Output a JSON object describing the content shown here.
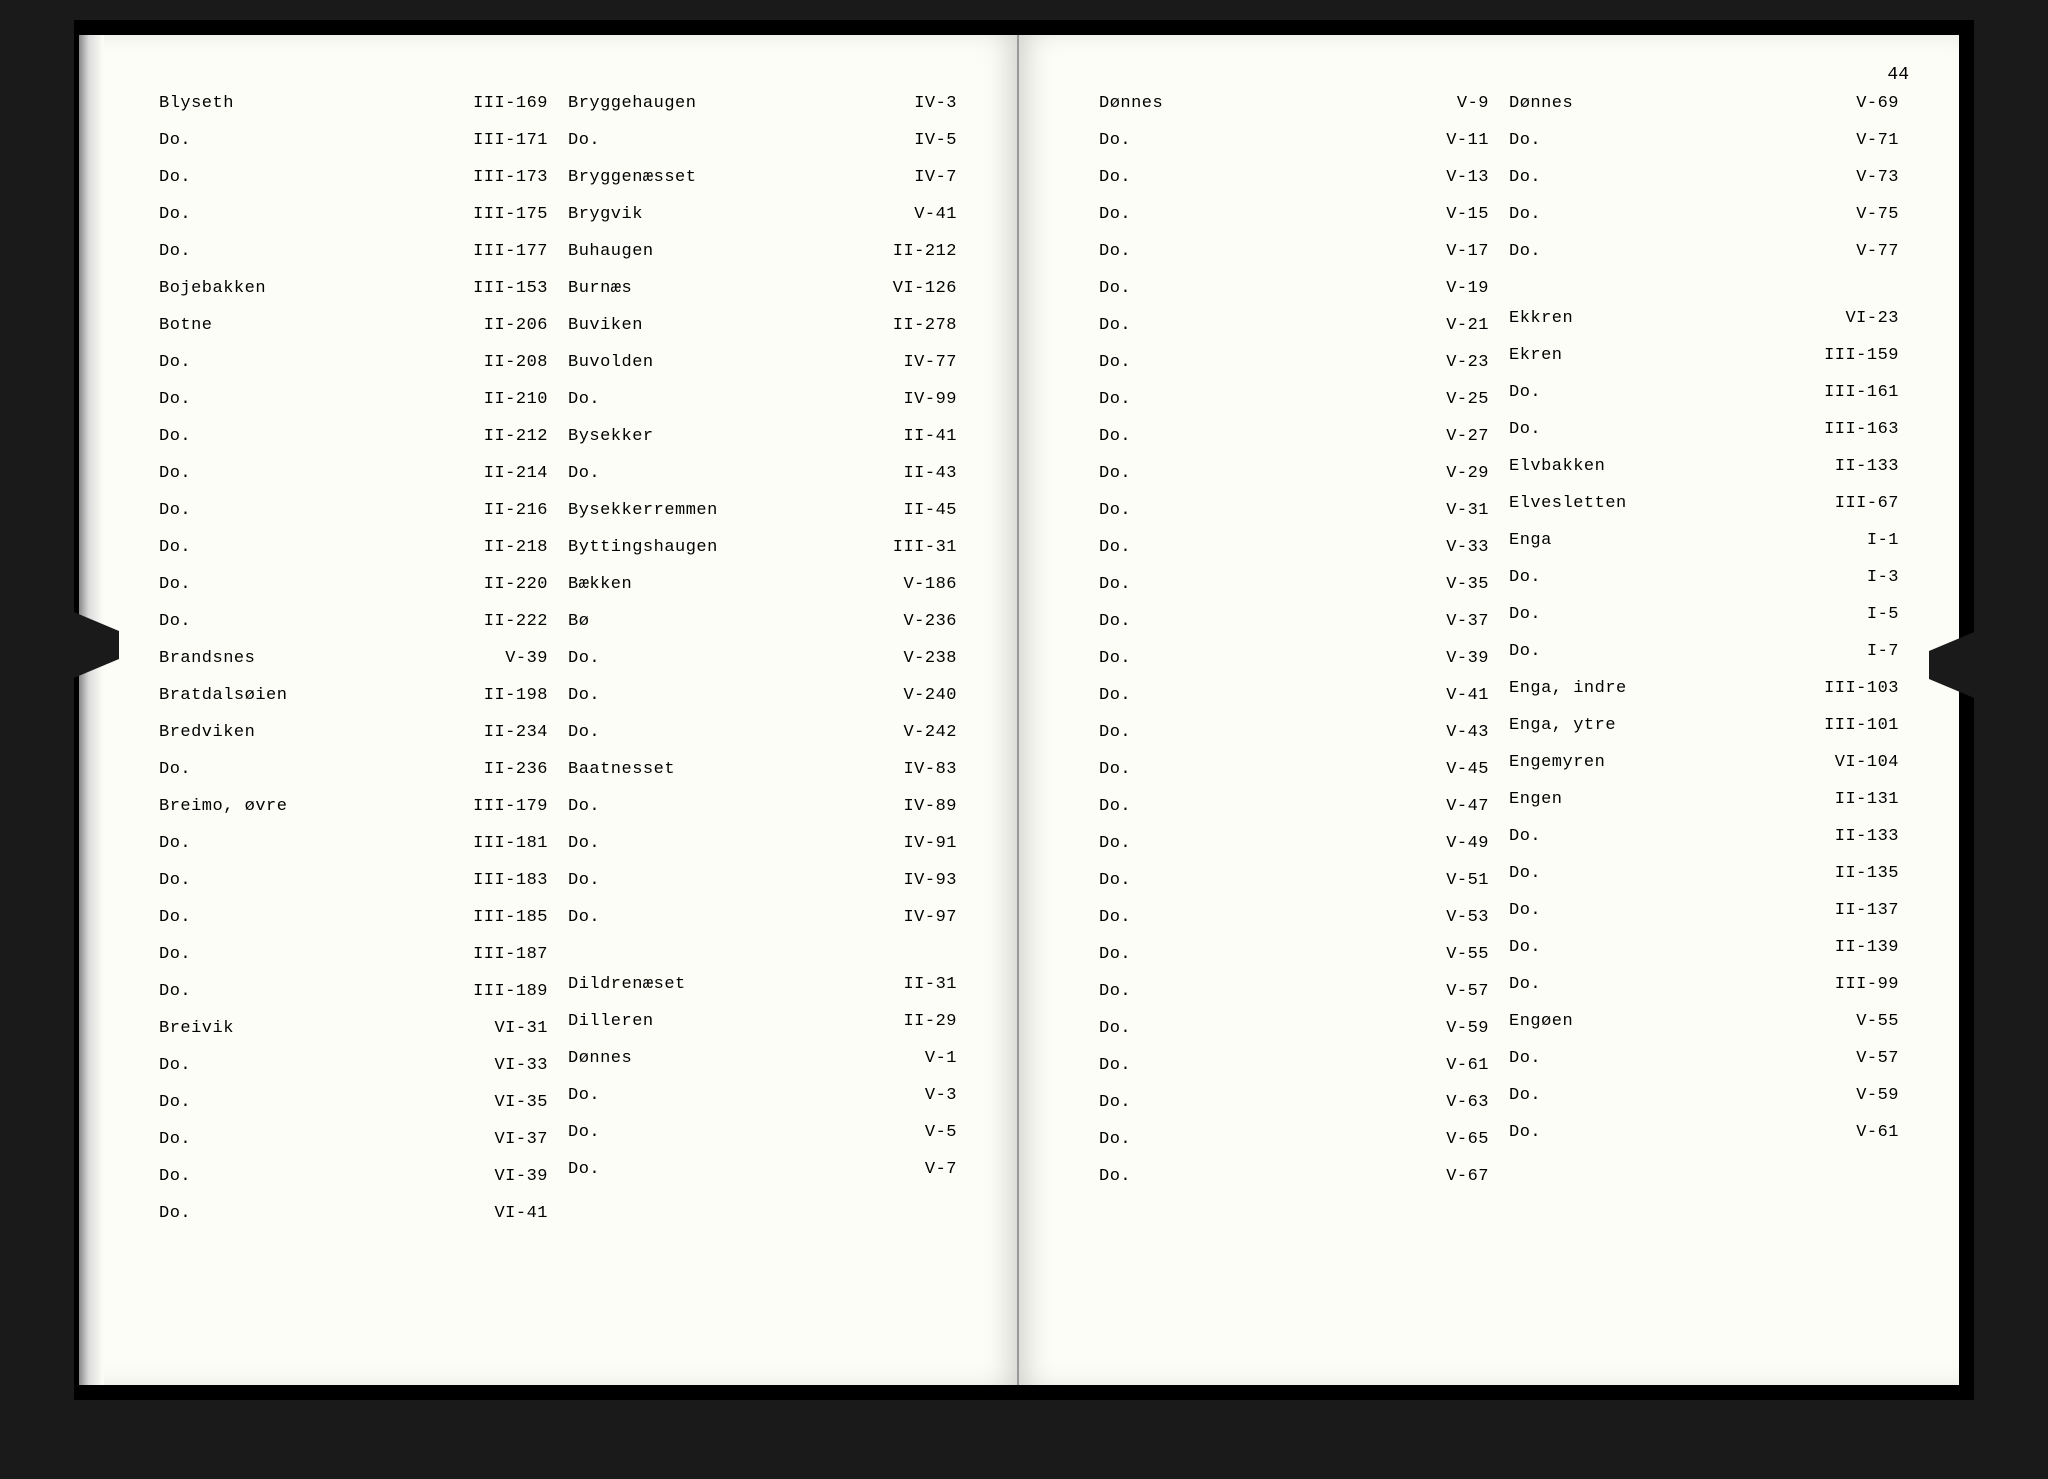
{
  "page_number": "44",
  "left_page": {
    "col1": [
      {
        "name": "Blyseth",
        "ref": "III-169"
      },
      {
        "name": "Do.",
        "ref": "III-171"
      },
      {
        "name": "Do.",
        "ref": "III-173"
      },
      {
        "name": "Do.",
        "ref": "III-175"
      },
      {
        "name": "Do.",
        "ref": "III-177"
      },
      {
        "name": "Bojebakken",
        "ref": "III-153"
      },
      {
        "name": "Botne",
        "ref": "II-206"
      },
      {
        "name": "Do.",
        "ref": "II-208"
      },
      {
        "name": "Do.",
        "ref": "II-210"
      },
      {
        "name": "Do.",
        "ref": "II-212"
      },
      {
        "name": "Do.",
        "ref": "II-214"
      },
      {
        "name": "Do.",
        "ref": "II-216"
      },
      {
        "name": "Do.",
        "ref": "II-218"
      },
      {
        "name": "Do.",
        "ref": "II-220"
      },
      {
        "name": "Do.",
        "ref": "II-222"
      },
      {
        "name": "Brandsnes",
        "ref": "V-39"
      },
      {
        "name": "Bratdalsøien",
        "ref": "II-198"
      },
      {
        "name": "Bredviken",
        "ref": "II-234"
      },
      {
        "name": "Do.",
        "ref": "II-236"
      },
      {
        "name": "Breimo, øvre",
        "ref": "III-179"
      },
      {
        "name": "Do.",
        "ref": "III-181"
      },
      {
        "name": "Do.",
        "ref": "III-183"
      },
      {
        "name": "Do.",
        "ref": "III-185"
      },
      {
        "name": "Do.",
        "ref": "III-187"
      },
      {
        "name": "Do.",
        "ref": "III-189"
      },
      {
        "name": "Breivik",
        "ref": "VI-31"
      },
      {
        "name": "Do.",
        "ref": "VI-33"
      },
      {
        "name": "Do.",
        "ref": "VI-35"
      },
      {
        "name": "Do.",
        "ref": "VI-37"
      },
      {
        "name": "Do.",
        "ref": "VI-39"
      },
      {
        "name": "Do.",
        "ref": "VI-41"
      }
    ],
    "col2": [
      {
        "name": "Bryggehaugen",
        "ref": "IV-3"
      },
      {
        "name": "Do.",
        "ref": "IV-5"
      },
      {
        "name": "Bryggenæsset",
        "ref": "IV-7"
      },
      {
        "name": "Brygvik",
        "ref": "V-41"
      },
      {
        "name": "Buhaugen",
        "ref": "II-212"
      },
      {
        "name": "Burnæs",
        "ref": "VI-126"
      },
      {
        "name": "Buviken",
        "ref": "II-278"
      },
      {
        "name": "Buvolden",
        "ref": "IV-77"
      },
      {
        "name": "Do.",
        "ref": "IV-99"
      },
      {
        "name": "Bysekker",
        "ref": "II-41"
      },
      {
        "name": "Do.",
        "ref": "II-43"
      },
      {
        "name": "Bysekkerremmen",
        "ref": "II-45"
      },
      {
        "name": "Byttingshaugen",
        "ref": "III-31"
      },
      {
        "name": "Bækken",
        "ref": "V-186"
      },
      {
        "name": "Bø",
        "ref": "V-236"
      },
      {
        "name": "Do.",
        "ref": "V-238"
      },
      {
        "name": "Do.",
        "ref": "V-240"
      },
      {
        "name": "Do.",
        "ref": "V-242"
      },
      {
        "name": "Baatnesset",
        "ref": "IV-83"
      },
      {
        "name": "Do.",
        "ref": "IV-89"
      },
      {
        "name": "Do.",
        "ref": "IV-91"
      },
      {
        "name": "Do.",
        "ref": "IV-93"
      },
      {
        "name": "Do.",
        "ref": "IV-97"
      },
      {
        "name": "Dildrenæset",
        "ref": "II-31",
        "gap": true
      },
      {
        "name": "Dilleren",
        "ref": "II-29"
      },
      {
        "name": "Dønnes",
        "ref": "V-1"
      },
      {
        "name": "Do.",
        "ref": "V-3"
      },
      {
        "name": "Do.",
        "ref": "V-5"
      },
      {
        "name": "Do.",
        "ref": "V-7"
      }
    ]
  },
  "right_page": {
    "col1": [
      {
        "name": "Dønnes",
        "ref": "V-9"
      },
      {
        "name": "Do.",
        "ref": "V-11"
      },
      {
        "name": "Do.",
        "ref": "V-13"
      },
      {
        "name": "Do.",
        "ref": "V-15"
      },
      {
        "name": "Do.",
        "ref": "V-17"
      },
      {
        "name": "Do.",
        "ref": "V-19"
      },
      {
        "name": "Do.",
        "ref": "V-21"
      },
      {
        "name": "Do.",
        "ref": "V-23"
      },
      {
        "name": "Do.",
        "ref": "V-25"
      },
      {
        "name": "Do.",
        "ref": "V-27"
      },
      {
        "name": "Do.",
        "ref": "V-29"
      },
      {
        "name": "Do.",
        "ref": "V-31"
      },
      {
        "name": "Do.",
        "ref": "V-33"
      },
      {
        "name": "Do.",
        "ref": "V-35"
      },
      {
        "name": "Do.",
        "ref": "V-37"
      },
      {
        "name": "Do.",
        "ref": "V-39"
      },
      {
        "name": "Do.",
        "ref": "V-41"
      },
      {
        "name": "Do.",
        "ref": "V-43"
      },
      {
        "name": "Do.",
        "ref": "V-45"
      },
      {
        "name": "Do.",
        "ref": "V-47"
      },
      {
        "name": "Do.",
        "ref": "V-49"
      },
      {
        "name": "Do.",
        "ref": "V-51"
      },
      {
        "name": "Do.",
        "ref": "V-53"
      },
      {
        "name": "Do.",
        "ref": "V-55"
      },
      {
        "name": "Do.",
        "ref": "V-57"
      },
      {
        "name": "Do.",
        "ref": "V-59"
      },
      {
        "name": "Do.",
        "ref": "V-61"
      },
      {
        "name": "Do.",
        "ref": "V-63"
      },
      {
        "name": "Do.",
        "ref": "V-65"
      },
      {
        "name": "Do.",
        "ref": "V-67"
      }
    ],
    "col2": [
      {
        "name": "Dønnes",
        "ref": "V-69"
      },
      {
        "name": "Do.",
        "ref": "V-71"
      },
      {
        "name": "Do.",
        "ref": "V-73"
      },
      {
        "name": "Do.",
        "ref": "V-75"
      },
      {
        "name": "Do.",
        "ref": "V-77"
      },
      {
        "name": "Ekkren",
        "ref": "VI-23",
        "gap": true
      },
      {
        "name": "Ekren",
        "ref": "III-159"
      },
      {
        "name": "Do.",
        "ref": "III-161"
      },
      {
        "name": "Do.",
        "ref": "III-163"
      },
      {
        "name": "Elvbakken",
        "ref": "II-133"
      },
      {
        "name": "Elvesletten",
        "ref": "III-67"
      },
      {
        "name": "Enga",
        "ref": "I-1"
      },
      {
        "name": "Do.",
        "ref": "I-3"
      },
      {
        "name": "Do.",
        "ref": "I-5"
      },
      {
        "name": "Do.",
        "ref": "I-7"
      },
      {
        "name": "Enga, indre",
        "ref": "III-103"
      },
      {
        "name": "Enga, ytre",
        "ref": "III-101"
      },
      {
        "name": "Engemyren",
        "ref": "VI-104"
      },
      {
        "name": "Engen",
        "ref": "II-131"
      },
      {
        "name": "Do.",
        "ref": "II-133"
      },
      {
        "name": "Do.",
        "ref": "II-135"
      },
      {
        "name": "Do.",
        "ref": "II-137"
      },
      {
        "name": "Do.",
        "ref": "II-139"
      },
      {
        "name": "Do.",
        "ref": "III-99"
      },
      {
        "name": "Engøen",
        "ref": "V-55"
      },
      {
        "name": "Do.",
        "ref": "V-57"
      },
      {
        "name": "Do.",
        "ref": "V-59"
      },
      {
        "name": "Do.",
        "ref": "V-61"
      }
    ]
  }
}
